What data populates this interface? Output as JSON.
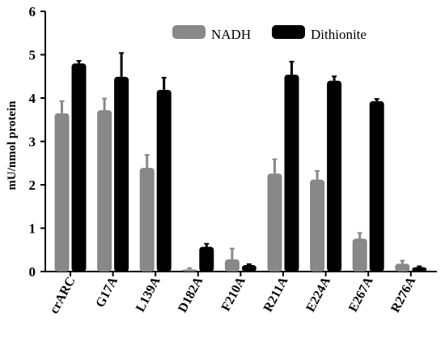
{
  "chart_data": {
    "type": "bar",
    "title": "",
    "xlabel": "",
    "ylabel": "mU/nmol protein",
    "ylim": [
      0,
      6
    ],
    "yticks": [
      "0",
      "1",
      "2",
      "3",
      "4",
      "5",
      "6"
    ],
    "categories": [
      "crARC",
      "G17A",
      "L139A",
      "D182A",
      "F210A",
      "R211A",
      "E224A",
      "E267A",
      "R276A"
    ],
    "legend_position": "top-right",
    "grid": false,
    "series": [
      {
        "name": "NADH",
        "color": "#888888",
        "values": [
          3.65,
          3.72,
          2.39,
          0.05,
          0.28,
          2.26,
          2.12,
          0.76,
          0.18
        ],
        "errors": [
          0.28,
          0.27,
          0.3,
          0.03,
          0.25,
          0.33,
          0.2,
          0.13,
          0.07
        ]
      },
      {
        "name": "Dithionite",
        "color": "#000000",
        "values": [
          4.8,
          4.49,
          4.19,
          0.57,
          0.15,
          4.54,
          4.4,
          3.93,
          0.1
        ],
        "errors": [
          0.06,
          0.55,
          0.28,
          0.07,
          0.02,
          0.3,
          0.1,
          0.05,
          0.02
        ]
      }
    ]
  }
}
